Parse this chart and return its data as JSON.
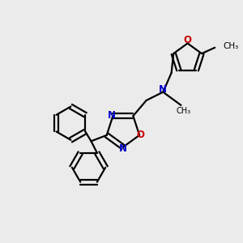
{
  "background_color": "#ebebeb",
  "bond_color": "#000000",
  "nitrogen_color": "#0000cc",
  "oxygen_color": "#cc0000",
  "line_width": 1.6,
  "figsize": [
    3.0,
    3.0
  ],
  "dpi": 100,
  "xlim": [
    0,
    10
  ],
  "ylim": [
    0,
    10
  ]
}
